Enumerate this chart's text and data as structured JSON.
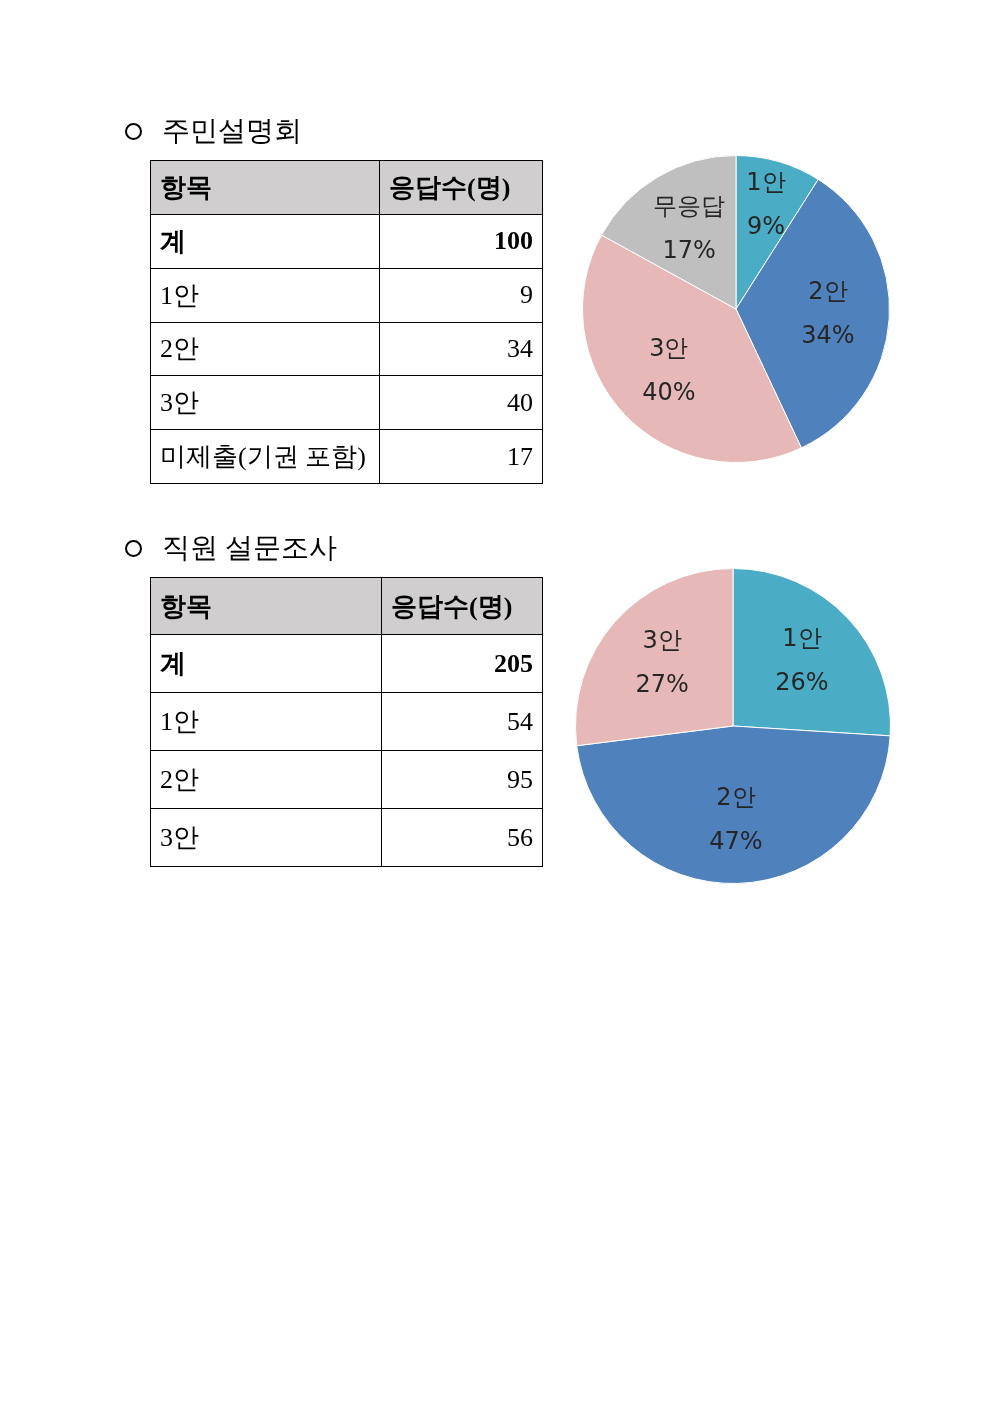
{
  "chart_data": [
    {
      "type": "other",
      "title": "주민설명회",
      "xlabel": "항목",
      "ylabel": "응답수(명)",
      "categories": [
        "계",
        "1안",
        "2안",
        "3안",
        "미제출(기권 포함)"
      ],
      "values": [
        100,
        9,
        34,
        40,
        17
      ],
      "data_labels": true
    },
    {
      "type": "pie",
      "categories": [
        "1안",
        "2안",
        "3안",
        "무응답"
      ],
      "values": [
        9,
        34,
        40,
        17
      ],
      "colors": [
        "#4bacc6",
        "#4f81bd",
        "#e6b9b8",
        "#bfbfbf"
      ],
      "value_labels": [
        "9%",
        "34%",
        "40%",
        "17%"
      ]
    },
    {
      "type": "other",
      "title": "직원 설문조사",
      "xlabel": "항목",
      "ylabel": "응답수(명)",
      "categories": [
        "계",
        "1안",
        "2안",
        "3안"
      ],
      "values": [
        205,
        54,
        95,
        56
      ],
      "data_labels": true
    },
    {
      "type": "pie",
      "categories": [
        "1안",
        "2안",
        "3안"
      ],
      "values": [
        26,
        47,
        27
      ],
      "colors": [
        "#4bacc6",
        "#4f81bd",
        "#e6b9b8"
      ],
      "value_labels": [
        "26%",
        "47%",
        "27%"
      ]
    }
  ]
}
